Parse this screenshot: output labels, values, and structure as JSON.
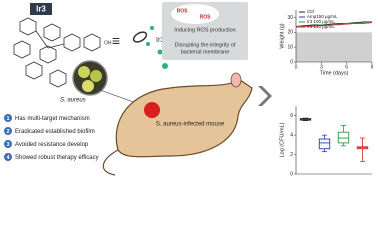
{
  "diagram": {
    "molecule_label": "Ir3",
    "molecule_group": "OH",
    "equiv": "≡",
    "agent_label": "Ir3",
    "ros_labels": [
      "ROS",
      "ROS"
    ],
    "mechanisms": [
      "Inducing ROS production",
      [
        "Disrupting the integrity of",
        "bacterial membrane"
      ]
    ],
    "bacteria_label": "S. aureus",
    "mouse_label": "S. aureus-infected mouse",
    "highlights": [
      {
        "number": "1",
        "text": "Has multi-target mechanism"
      },
      {
        "number": "2",
        "text": "Eradicated established biofilm"
      },
      {
        "number": "3",
        "text": "Avoided resistance develop"
      },
      {
        "number": "4",
        "text": "Showed robust therapy efficacy"
      }
    ]
  },
  "chart_data": [
    {
      "type": "line",
      "x_label": "Time (days)",
      "y_label": "Weight (g)",
      "x": [
        0,
        1,
        2,
        3,
        4,
        5,
        6,
        7,
        8,
        9
      ],
      "xlim": [
        0,
        9
      ],
      "xticks": [
        0,
        3,
        6,
        9
      ],
      "ylim": [
        0,
        35
      ],
      "yticks": [
        0,
        10,
        20,
        30
      ],
      "series": [
        {
          "name": "Ctrl",
          "color": "#222222",
          "values": [
            24,
            24.5,
            25,
            25,
            25.5,
            26,
            26,
            26.5,
            27,
            27
          ]
        },
        {
          "name": "Amp150 μg/mL",
          "color": "#1f3fbf",
          "values": [
            23.5,
            24,
            24.5,
            24.5,
            25,
            25.5,
            25.5,
            26,
            26,
            26.5
          ]
        },
        {
          "name": "Ir3 100 μg/mL",
          "color": "#2a9d3a",
          "values": [
            24,
            24,
            24.5,
            25,
            25,
            25.5,
            26,
            26,
            26.5,
            26.5
          ]
        },
        {
          "name": "Ir3 150 μg/mL",
          "color": "#d62728",
          "values": [
            23.5,
            24,
            24,
            24.5,
            25,
            25,
            25.5,
            26,
            26,
            26.5
          ]
        }
      ]
    },
    {
      "type": "box",
      "y_label": "Log (CFU/mL)",
      "categories": [
        null,
        null,
        null,
        null
      ],
      "ylim": [
        0,
        7
      ],
      "yticks": [
        0,
        2,
        4,
        6
      ],
      "boxes": [
        {
          "color": "#222222",
          "min": 5.5,
          "q1": 5.55,
          "median": 5.6,
          "q3": 5.7,
          "max": 5.75
        },
        {
          "color": "#1f3fbf",
          "min": 2.3,
          "q1": 2.6,
          "median": 3.2,
          "q3": 3.6,
          "max": 4.0
        },
        {
          "color": "#2a9d3a",
          "min": 2.9,
          "q1": 3.2,
          "median": 3.7,
          "q3": 4.3,
          "max": 5.0
        },
        {
          "color": "#d62728",
          "min": 1.3,
          "q1": 2.6,
          "median": 2.7,
          "q3": 2.8,
          "max": 3.7
        }
      ]
    }
  ]
}
